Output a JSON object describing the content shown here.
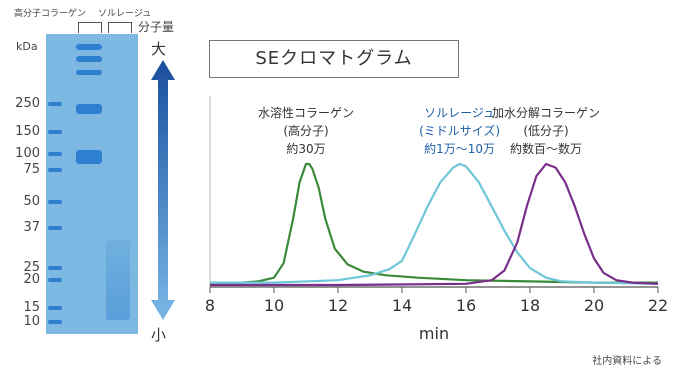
{
  "gel": {
    "lane_labels": [
      "高分子コラーゲン",
      "ソルレージュ"
    ],
    "unit": "kDa",
    "markers": [
      "250",
      "150",
      "100",
      "75",
      "50",
      "37",
      "25",
      "20",
      "15",
      "10"
    ],
    "mw_axis": {
      "title": "分子量",
      "top": "大",
      "bottom": "小"
    }
  },
  "chart_title": "SEクロマトグラム",
  "source_note": "社内資料による",
  "colors": {
    "gel": "#7cb8e1",
    "lane_band": "#2f7fd0",
    "arrow_top": "#1a4e9e",
    "arrow_bottom": "#7ab7e6",
    "high_mw": "#3a8a3a",
    "solrege": "#6ec6d8",
    "hydrolyzed": "#7a2e8c"
  },
  "chart_data": {
    "type": "line",
    "title": "SEクロマトグラム",
    "xlabel": "min",
    "ylabel": "",
    "xlim": [
      8,
      22
    ],
    "xticks": [
      "8",
      "10",
      "12",
      "14",
      "16",
      "18",
      "20",
      "22"
    ],
    "grid": false,
    "series": [
      {
        "label_lines": [
          "水溶性コラーゲン",
          "(高分子)",
          "約30万"
        ],
        "color": "high_mw",
        "x": [
          8,
          9,
          9.5,
          10,
          10.3,
          10.6,
          10.8,
          11.0,
          11.1,
          11.2,
          11.4,
          11.6,
          11.9,
          12.3,
          12.8,
          13.5,
          14.5,
          16,
          18,
          20,
          22
        ],
        "y": [
          0.02,
          0.02,
          0.03,
          0.06,
          0.18,
          0.55,
          0.85,
          1.0,
          1.0,
          0.96,
          0.8,
          0.55,
          0.3,
          0.17,
          0.11,
          0.08,
          0.06,
          0.04,
          0.03,
          0.02,
          0.02
        ]
      },
      {
        "label_lines": [
          "ソルレージュ",
          "(ミドルサイズ)",
          "約1万〜10万"
        ],
        "color": "solrege",
        "x": [
          8,
          10,
          12,
          13,
          13.6,
          14.0,
          14.4,
          14.8,
          15.2,
          15.6,
          15.8,
          16.0,
          16.4,
          16.8,
          17.2,
          17.6,
          18,
          18.5,
          19,
          20,
          22
        ],
        "y": [
          0.02,
          0.02,
          0.04,
          0.08,
          0.13,
          0.2,
          0.42,
          0.65,
          0.85,
          0.97,
          1.0,
          0.98,
          0.85,
          0.65,
          0.45,
          0.27,
          0.14,
          0.06,
          0.03,
          0.02,
          0.01
        ]
      },
      {
        "label_lines": [
          "加水分解コラーゲン",
          "(低分子)",
          "約数百〜数万"
        ],
        "color": "hydrolyzed",
        "x": [
          8,
          12,
          16,
          16.8,
          17.2,
          17.6,
          17.9,
          18.2,
          18.5,
          18.8,
          19.1,
          19.4,
          19.7,
          20.0,
          20.3,
          20.7,
          21.2,
          22
        ],
        "y": [
          0.0,
          0.0,
          0.01,
          0.04,
          0.12,
          0.35,
          0.65,
          0.9,
          1.0,
          0.97,
          0.85,
          0.65,
          0.42,
          0.22,
          0.1,
          0.04,
          0.02,
          0.01
        ]
      }
    ]
  }
}
